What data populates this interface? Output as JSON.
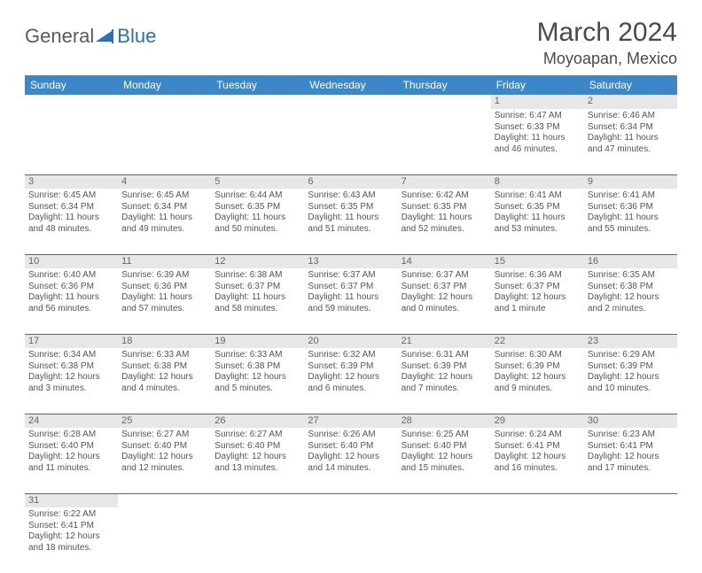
{
  "logo": {
    "text1": "General",
    "text2": "Blue",
    "icon_color": "#2a72b5"
  },
  "title": "March 2024",
  "location": "Moyoapan, Mexico",
  "colors": {
    "header_bg": "#3b87c8",
    "header_fg": "#ffffff",
    "daynum_bg": "#e7e7e7",
    "rule": "#2a72b5",
    "text": "#555555"
  },
  "weekdays": [
    "Sunday",
    "Monday",
    "Tuesday",
    "Wednesday",
    "Thursday",
    "Friday",
    "Saturday"
  ],
  "weeks": [
    [
      null,
      null,
      null,
      null,
      null,
      {
        "n": "1",
        "sunrise": "6:47 AM",
        "sunset": "6:33 PM",
        "day_h": "11",
        "day_m": "46"
      },
      {
        "n": "2",
        "sunrise": "6:46 AM",
        "sunset": "6:34 PM",
        "day_h": "11",
        "day_m": "47"
      }
    ],
    [
      {
        "n": "3",
        "sunrise": "6:45 AM",
        "sunset": "6:34 PM",
        "day_h": "11",
        "day_m": "48"
      },
      {
        "n": "4",
        "sunrise": "6:45 AM",
        "sunset": "6:34 PM",
        "day_h": "11",
        "day_m": "49"
      },
      {
        "n": "5",
        "sunrise": "6:44 AM",
        "sunset": "6:35 PM",
        "day_h": "11",
        "day_m": "50"
      },
      {
        "n": "6",
        "sunrise": "6:43 AM",
        "sunset": "6:35 PM",
        "day_h": "11",
        "day_m": "51"
      },
      {
        "n": "7",
        "sunrise": "6:42 AM",
        "sunset": "6:35 PM",
        "day_h": "11",
        "day_m": "52"
      },
      {
        "n": "8",
        "sunrise": "6:41 AM",
        "sunset": "6:35 PM",
        "day_h": "11",
        "day_m": "53"
      },
      {
        "n": "9",
        "sunrise": "6:41 AM",
        "sunset": "6:36 PM",
        "day_h": "11",
        "day_m": "55"
      }
    ],
    [
      {
        "n": "10",
        "sunrise": "6:40 AM",
        "sunset": "6:36 PM",
        "day_h": "11",
        "day_m": "56"
      },
      {
        "n": "11",
        "sunrise": "6:39 AM",
        "sunset": "6:36 PM",
        "day_h": "11",
        "day_m": "57"
      },
      {
        "n": "12",
        "sunrise": "6:38 AM",
        "sunset": "6:37 PM",
        "day_h": "11",
        "day_m": "58"
      },
      {
        "n": "13",
        "sunrise": "6:37 AM",
        "sunset": "6:37 PM",
        "day_h": "11",
        "day_m": "59"
      },
      {
        "n": "14",
        "sunrise": "6:37 AM",
        "sunset": "6:37 PM",
        "day_h": "12",
        "day_m": "0"
      },
      {
        "n": "15",
        "sunrise": "6:36 AM",
        "sunset": "6:37 PM",
        "day_h": "12",
        "day_m": "1",
        "minute_word": "minute"
      },
      {
        "n": "16",
        "sunrise": "6:35 AM",
        "sunset": "6:38 PM",
        "day_h": "12",
        "day_m": "2"
      }
    ],
    [
      {
        "n": "17",
        "sunrise": "6:34 AM",
        "sunset": "6:38 PM",
        "day_h": "12",
        "day_m": "3"
      },
      {
        "n": "18",
        "sunrise": "6:33 AM",
        "sunset": "6:38 PM",
        "day_h": "12",
        "day_m": "4"
      },
      {
        "n": "19",
        "sunrise": "6:33 AM",
        "sunset": "6:38 PM",
        "day_h": "12",
        "day_m": "5"
      },
      {
        "n": "20",
        "sunrise": "6:32 AM",
        "sunset": "6:39 PM",
        "day_h": "12",
        "day_m": "6"
      },
      {
        "n": "21",
        "sunrise": "6:31 AM",
        "sunset": "6:39 PM",
        "day_h": "12",
        "day_m": "7"
      },
      {
        "n": "22",
        "sunrise": "6:30 AM",
        "sunset": "6:39 PM",
        "day_h": "12",
        "day_m": "9"
      },
      {
        "n": "23",
        "sunrise": "6:29 AM",
        "sunset": "6:39 PM",
        "day_h": "12",
        "day_m": "10"
      }
    ],
    [
      {
        "n": "24",
        "sunrise": "6:28 AM",
        "sunset": "6:40 PM",
        "day_h": "12",
        "day_m": "11"
      },
      {
        "n": "25",
        "sunrise": "6:27 AM",
        "sunset": "6:40 PM",
        "day_h": "12",
        "day_m": "12"
      },
      {
        "n": "26",
        "sunrise": "6:27 AM",
        "sunset": "6:40 PM",
        "day_h": "12",
        "day_m": "13"
      },
      {
        "n": "27",
        "sunrise": "6:26 AM",
        "sunset": "6:40 PM",
        "day_h": "12",
        "day_m": "14"
      },
      {
        "n": "28",
        "sunrise": "6:25 AM",
        "sunset": "6:40 PM",
        "day_h": "12",
        "day_m": "15"
      },
      {
        "n": "29",
        "sunrise": "6:24 AM",
        "sunset": "6:41 PM",
        "day_h": "12",
        "day_m": "16"
      },
      {
        "n": "30",
        "sunrise": "6:23 AM",
        "sunset": "6:41 PM",
        "day_h": "12",
        "day_m": "17"
      }
    ],
    [
      {
        "n": "31",
        "sunrise": "6:22 AM",
        "sunset": "6:41 PM",
        "day_h": "12",
        "day_m": "18"
      },
      null,
      null,
      null,
      null,
      null,
      null
    ]
  ],
  "labels": {
    "sunrise": "Sunrise:",
    "sunset": "Sunset:",
    "daylight": "Daylight:",
    "hours": "hours",
    "and": "and",
    "minutes": "minutes."
  }
}
